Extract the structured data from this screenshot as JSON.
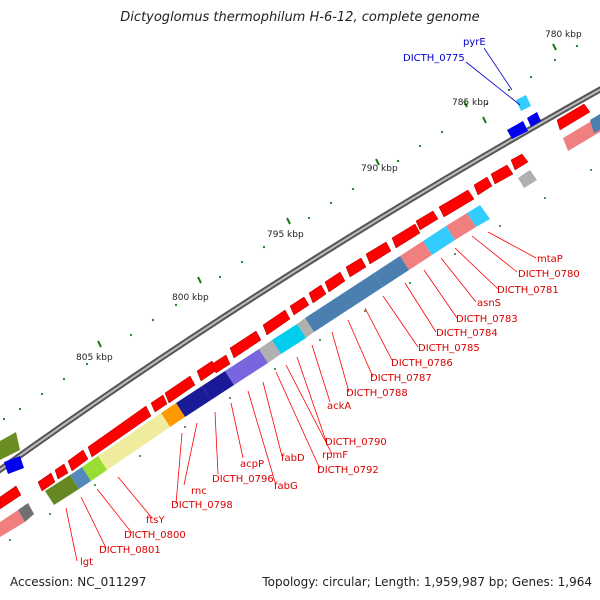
{
  "title": "Dictyoglomus thermophilum H-6-12, complete genome",
  "footer": {
    "accession": "Accession: NC_011297",
    "topology": "Topology: circular; Length: 1,959,987 bp; Genes: 1,964"
  },
  "scale_marks": [
    {
      "label": "780 kbp"
    },
    {
      "label": "785 kbp"
    },
    {
      "label": "790 kbp"
    },
    {
      "label": "795 kbp"
    },
    {
      "label": "800 kbp"
    },
    {
      "label": "805 kbp"
    }
  ],
  "gene_labels": {
    "top": [
      "pyrE",
      "DICTH_0775"
    ],
    "right": [
      "mtaP",
      "DICTH_0780",
      "DICTH_0781",
      "asnS",
      "DICTH_0783",
      "DICTH_0784",
      "DICTH_0785",
      "DICTH_0786",
      "DICTH_0787",
      "DICTH_0788",
      "ackA",
      "DICTH_0790",
      "rpmF",
      "DICTH_0792",
      "fabD",
      "fabG",
      "acpP",
      "DICTH_0796",
      "rnc",
      "DICTH_0798",
      "ftsY",
      "DICTH_0800",
      "DICTH_0801",
      "lgt"
    ]
  },
  "colors": {
    "backbone": "#808080",
    "forward_gene": "#ff0000",
    "reverse_gene": "#f08080",
    "top_label": "#0000cc",
    "gene_label": "#dd0000",
    "tick": "#1a7a1a"
  }
}
